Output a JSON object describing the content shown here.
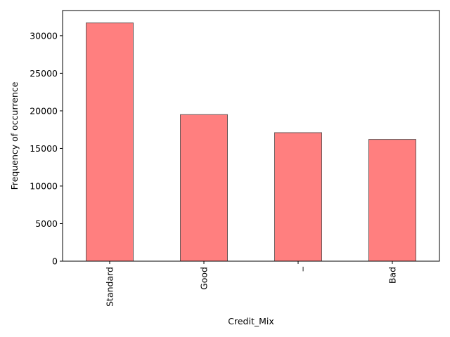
{
  "chart_data": {
    "type": "bar",
    "categories": [
      "Standard",
      "Good",
      "_",
      "Bad"
    ],
    "values": [
      31700,
      19500,
      17100,
      16200
    ],
    "xlabel": "Credit_Mix",
    "ylabel": "Frequency of occurrence",
    "ylim": [
      0,
      33350
    ],
    "yticks": [
      0,
      5000,
      10000,
      15000,
      20000,
      25000,
      30000
    ],
    "x_tick_rotation": "vertical",
    "grid": false,
    "legend": "none",
    "bar_color": "#ff7f7f",
    "bar_edge_color": "#6b5a5a"
  }
}
